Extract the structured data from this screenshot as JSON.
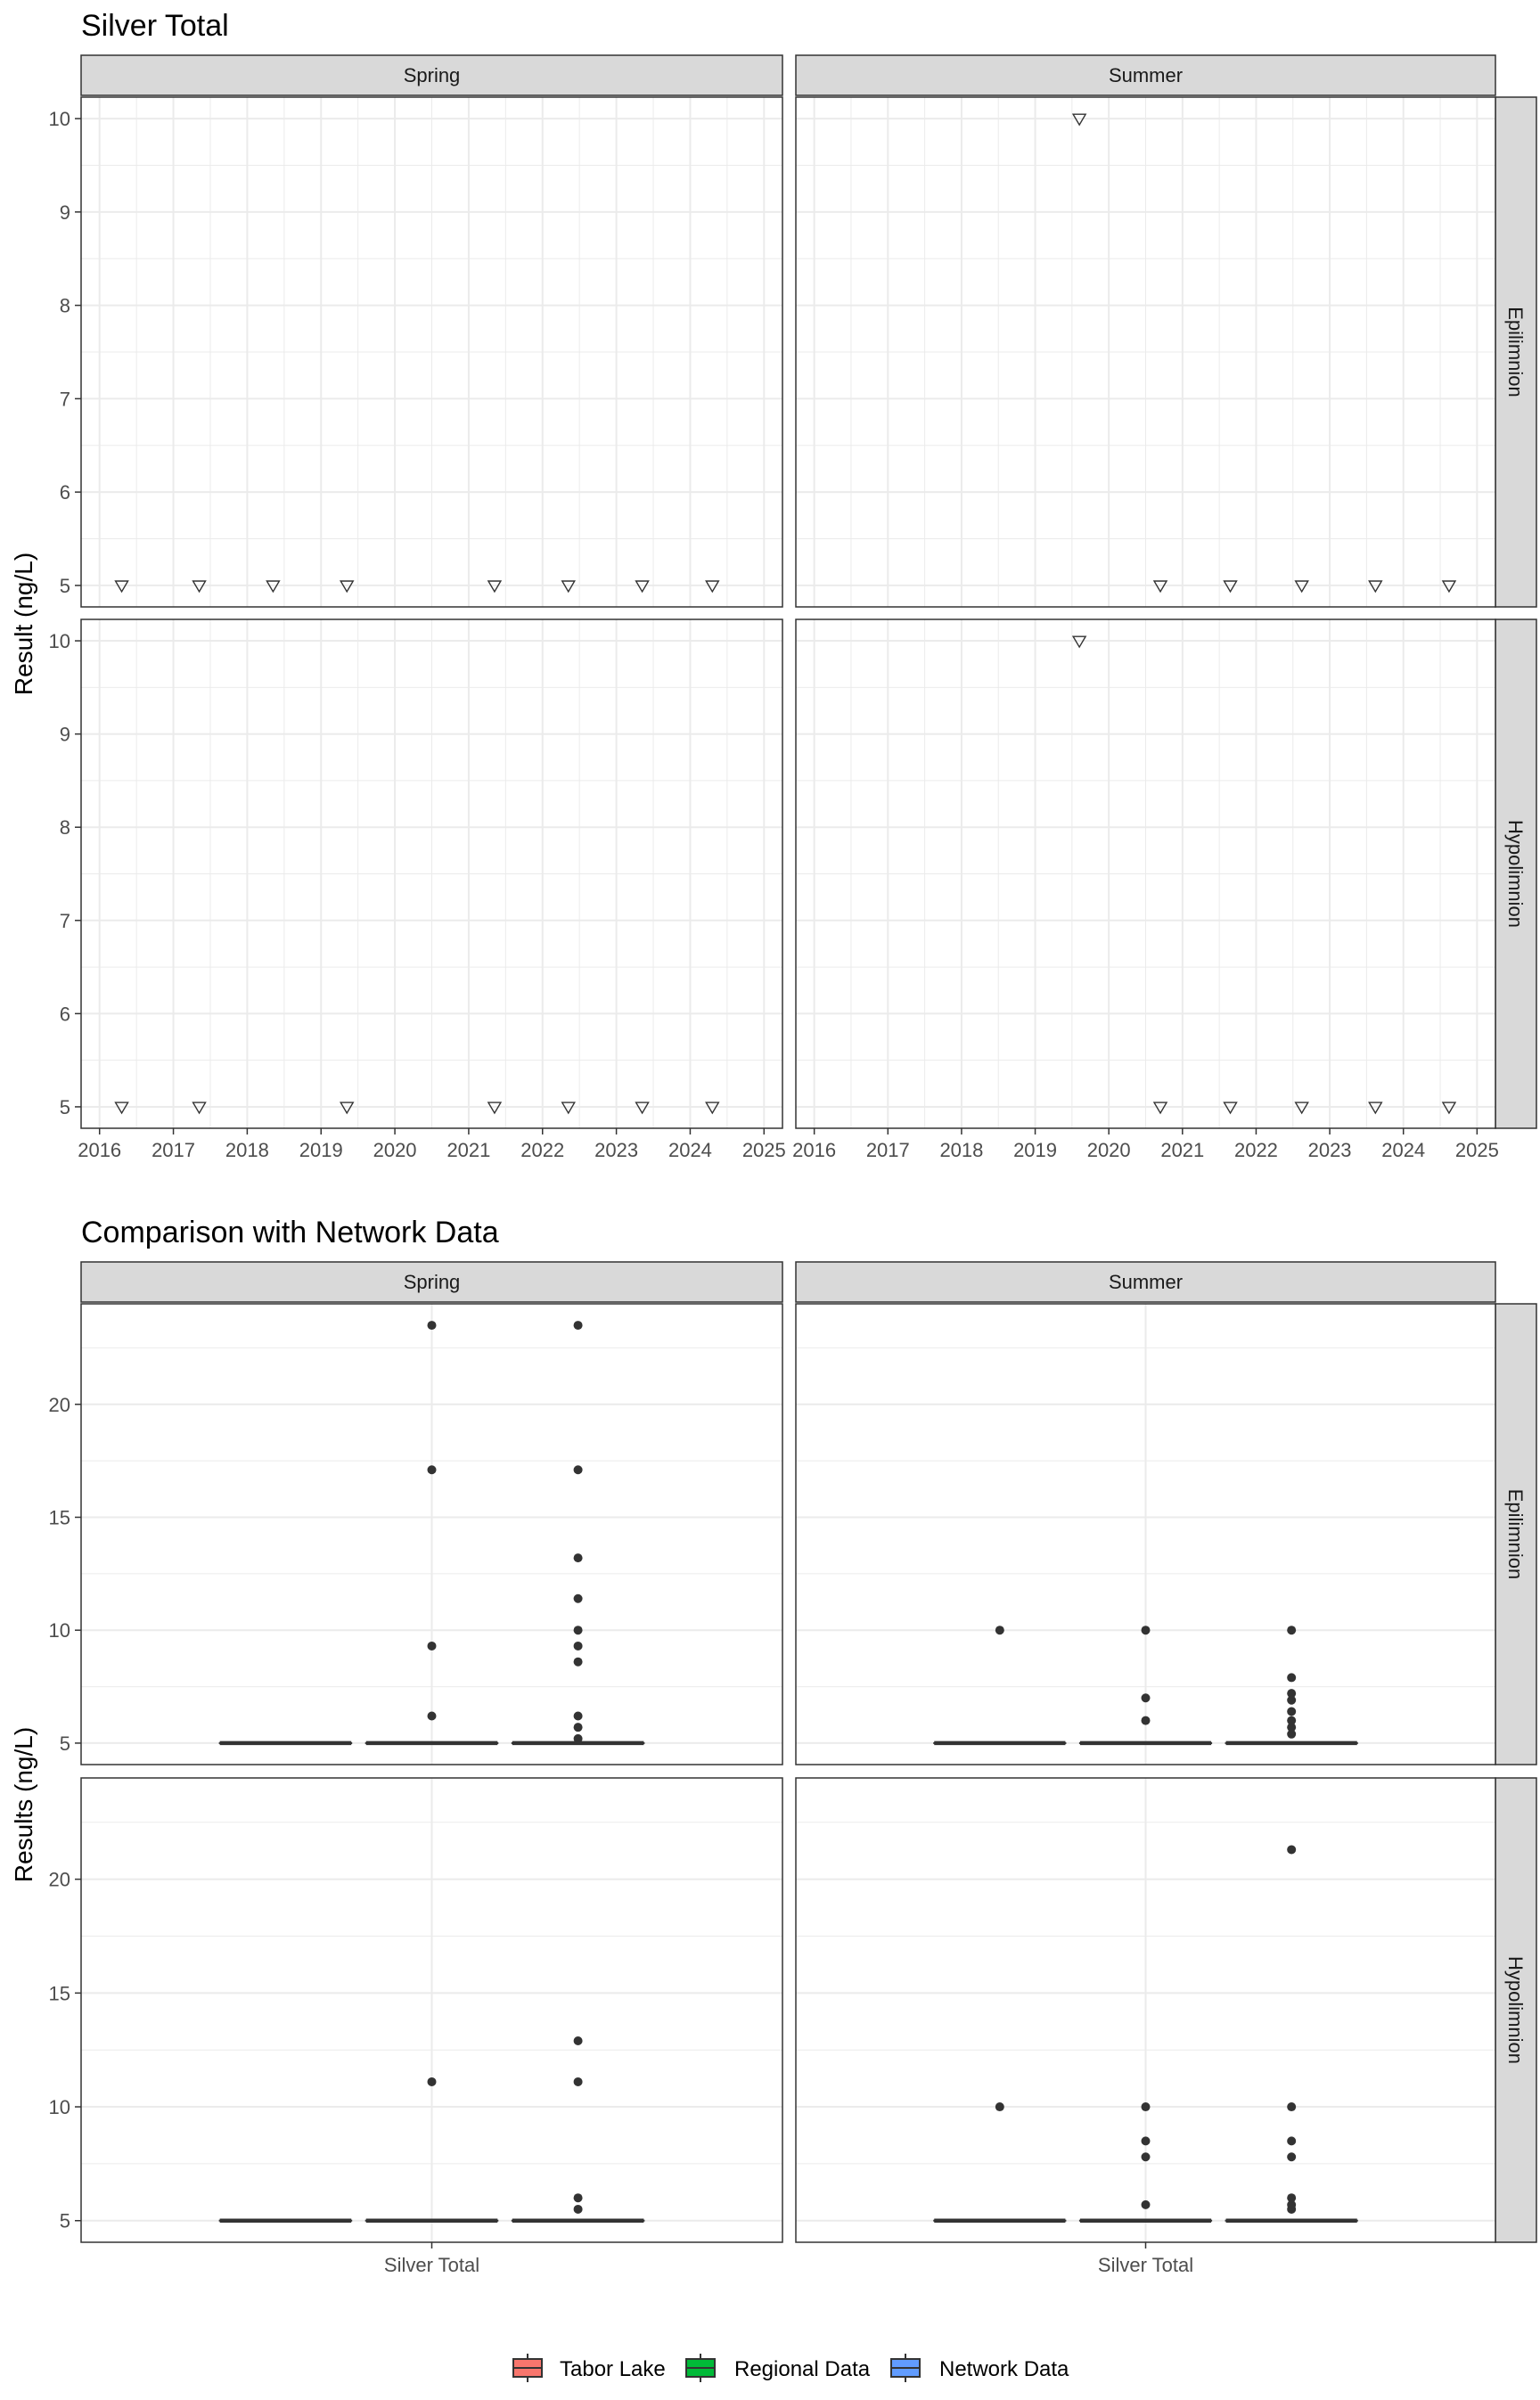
{
  "colors": {
    "tabor": "#F8766D",
    "regional": "#00BA38",
    "network": "#619CFF",
    "strip_fill": "#d9d9d9",
    "grid": "#ebebeb",
    "frame": "#333333",
    "point": "#333333"
  },
  "chart_data": [
    {
      "type": "scatter",
      "title": "Silver Total",
      "ylabel": "Result (ng/L)",
      "xlabel": "",
      "x_type": "year",
      "xlim": [
        2015.75,
        2025.25
      ],
      "ylim": [
        4.77,
        10.23
      ],
      "x_ticks": [
        2016,
        2017,
        2018,
        2019,
        2020,
        2021,
        2022,
        2023,
        2024,
        2025
      ],
      "x_tick_labels": [
        "2016",
        "2017",
        "2018",
        "2019",
        "2020",
        "2021",
        "2022",
        "2023",
        "2024",
        "2025"
      ],
      "y_ticks": [
        5,
        6,
        7,
        8,
        9,
        10
      ],
      "y_tick_labels": [
        "5",
        "6",
        "7",
        "8",
        "9",
        "10"
      ],
      "marker": "open-down-triangle",
      "col_labels": [
        "Spring",
        "Summer"
      ],
      "row_labels": [
        "Epilimnion",
        "Hypolimnion"
      ],
      "grid": true,
      "panels": [
        {
          "season": "Spring",
          "layer": "Epilimnion",
          "points": [
            [
              2016.3,
              5
            ],
            [
              2017.35,
              5
            ],
            [
              2018.35,
              5
            ],
            [
              2019.35,
              5
            ],
            [
              2021.35,
              5
            ],
            [
              2022.35,
              5
            ],
            [
              2023.35,
              5
            ],
            [
              2024.3,
              5
            ]
          ]
        },
        {
          "season": "Summer",
          "layer": "Epilimnion",
          "points": [
            [
              2019.6,
              10
            ],
            [
              2020.7,
              5
            ],
            [
              2021.65,
              5
            ],
            [
              2022.62,
              5
            ],
            [
              2023.62,
              5
            ],
            [
              2024.62,
              5
            ]
          ]
        },
        {
          "season": "Spring",
          "layer": "Hypolimnion",
          "points": [
            [
              2016.3,
              5
            ],
            [
              2017.35,
              5
            ],
            [
              2019.35,
              5
            ],
            [
              2021.35,
              5
            ],
            [
              2022.35,
              5
            ],
            [
              2023.35,
              5
            ],
            [
              2024.3,
              5
            ]
          ]
        },
        {
          "season": "Summer",
          "layer": "Hypolimnion",
          "points": [
            [
              2019.6,
              10
            ],
            [
              2020.7,
              5
            ],
            [
              2021.65,
              5
            ],
            [
              2022.62,
              5
            ],
            [
              2023.62,
              5
            ],
            [
              2024.62,
              5
            ]
          ]
        }
      ]
    },
    {
      "type": "boxplot",
      "title": "Comparison with Network Data",
      "ylabel": "Results (ng/L)",
      "xlabel": "",
      "categories": [
        "Silver Total"
      ],
      "ylim": [
        4.05,
        24.45
      ],
      "y_ticks": [
        5,
        10,
        15,
        20
      ],
      "y_tick_labels": [
        "5",
        "10",
        "15",
        "20"
      ],
      "col_labels": [
        "Spring",
        "Summer"
      ],
      "row_labels": [
        "Epilimnion",
        "Hypolimnion"
      ],
      "series_names": [
        "Tabor Lake",
        "Regional Data",
        "Network Data"
      ],
      "grid": true,
      "legend": "bottom",
      "panels": [
        {
          "season": "Spring",
          "layer": "Epilimnion",
          "groups": [
            {
              "series": "Tabor Lake",
              "median": 5,
              "q1": 5,
              "q3": 5,
              "whisker_low": 5,
              "whisker_high": 5,
              "outliers": []
            },
            {
              "series": "Regional Data",
              "median": 5,
              "q1": 5,
              "q3": 5,
              "whisker_low": 5,
              "whisker_high": 5,
              "outliers": [
                6.2,
                9.3,
                17.1,
                23.5
              ]
            },
            {
              "series": "Network Data",
              "median": 5,
              "q1": 5,
              "q3": 5,
              "whisker_low": 5,
              "whisker_high": 5,
              "outliers": [
                5.2,
                5.7,
                6.2,
                8.6,
                9.3,
                10.0,
                11.4,
                13.2,
                17.1,
                23.5
              ]
            }
          ]
        },
        {
          "season": "Summer",
          "layer": "Epilimnion",
          "groups": [
            {
              "series": "Tabor Lake",
              "median": 5,
              "q1": 5,
              "q3": 5,
              "whisker_low": 5,
              "whisker_high": 5,
              "outliers": [
                10.0
              ]
            },
            {
              "series": "Regional Data",
              "median": 5,
              "q1": 5,
              "q3": 5,
              "whisker_low": 5,
              "whisker_high": 5,
              "outliers": [
                6.0,
                7.0,
                10.0
              ]
            },
            {
              "series": "Network Data",
              "median": 5,
              "q1": 5,
              "q3": 5,
              "whisker_low": 5,
              "whisker_high": 5,
              "outliers": [
                5.4,
                5.7,
                6.0,
                6.4,
                6.9,
                7.2,
                7.9,
                10.0
              ]
            }
          ]
        },
        {
          "season": "Spring",
          "layer": "Hypolimnion",
          "groups": [
            {
              "series": "Tabor Lake",
              "median": 5,
              "q1": 5,
              "q3": 5,
              "whisker_low": 5,
              "whisker_high": 5,
              "outliers": []
            },
            {
              "series": "Regional Data",
              "median": 5,
              "q1": 5,
              "q3": 5,
              "whisker_low": 5,
              "whisker_high": 5,
              "outliers": [
                11.1
              ]
            },
            {
              "series": "Network Data",
              "median": 5,
              "q1": 5,
              "q3": 5,
              "whisker_low": 5,
              "whisker_high": 5,
              "outliers": [
                5.5,
                6.0,
                11.1,
                12.9
              ]
            }
          ]
        },
        {
          "season": "Summer",
          "layer": "Hypolimnion",
          "groups": [
            {
              "series": "Tabor Lake",
              "median": 5,
              "q1": 5,
              "q3": 5,
              "whisker_low": 5,
              "whisker_high": 5,
              "outliers": [
                10.0
              ]
            },
            {
              "series": "Regional Data",
              "median": 5,
              "q1": 5,
              "q3": 5,
              "whisker_low": 5,
              "whisker_high": 5,
              "outliers": [
                5.7,
                7.8,
                8.5,
                10.0
              ]
            },
            {
              "series": "Network Data",
              "median": 5,
              "q1": 5,
              "q3": 5,
              "whisker_low": 5,
              "whisker_high": 5,
              "outliers": [
                5.5,
                5.7,
                6.0,
                7.8,
                8.5,
                10.0,
                21.3
              ]
            }
          ]
        }
      ]
    }
  ]
}
